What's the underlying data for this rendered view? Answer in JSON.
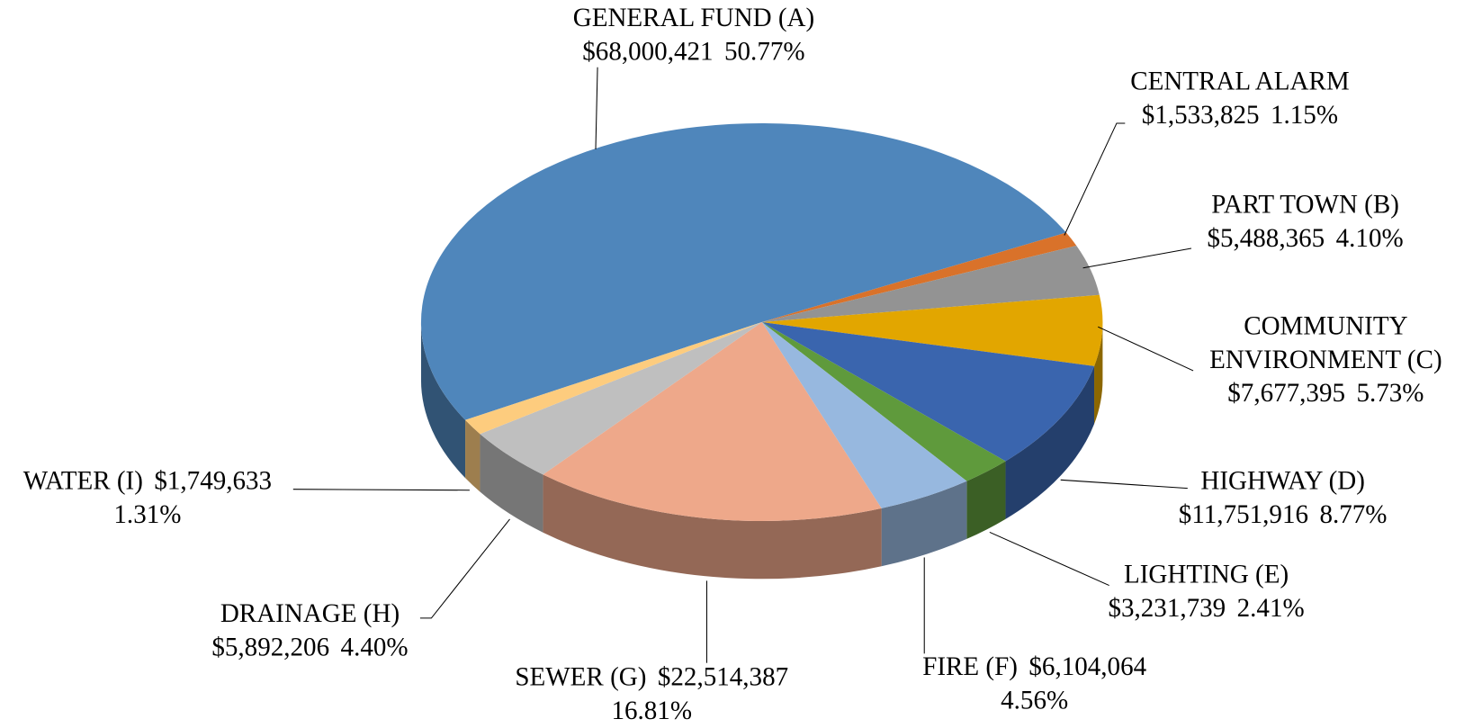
{
  "chart_data": {
    "type": "pie",
    "categories": [
      "GENERAL FUND (A)",
      "CENTRAL ALARM",
      "PART TOWN (B)",
      "COMMUNITY ENVIRONMENT (C)",
      "HIGHWAY (D)",
      "LIGHTING (E)",
      "FIRE (F)",
      "SEWER (G)",
      "DRAINAGE (H)",
      "WATER (I)"
    ],
    "values": [
      68000421,
      1533825,
      5488365,
      7677395,
      11751916,
      3231739,
      6104064,
      22514387,
      5892206,
      1749633
    ],
    "value_labels": [
      "$68,000,421",
      "$1,533,825",
      "$5,488,365",
      "$7,677,395",
      "$11,751,916",
      "$3,231,739",
      "$6,104,064",
      "$22,514,387",
      "$5,892,206",
      "$1,749,633"
    ],
    "percent_labels": [
      "50.77%",
      "1.15%",
      "4.10%",
      "5.73%",
      "8.77%",
      "2.41%",
      "4.56%",
      "16.81%",
      "4.40%",
      "1.31%"
    ],
    "colors": [
      "#4f86bb",
      "#d9722a",
      "#939393",
      "#e2a600",
      "#3a65ae",
      "#5f9a3c",
      "#97b8df",
      "#eea88a",
      "#bfbfbf",
      "#fdcc7e"
    ]
  }
}
